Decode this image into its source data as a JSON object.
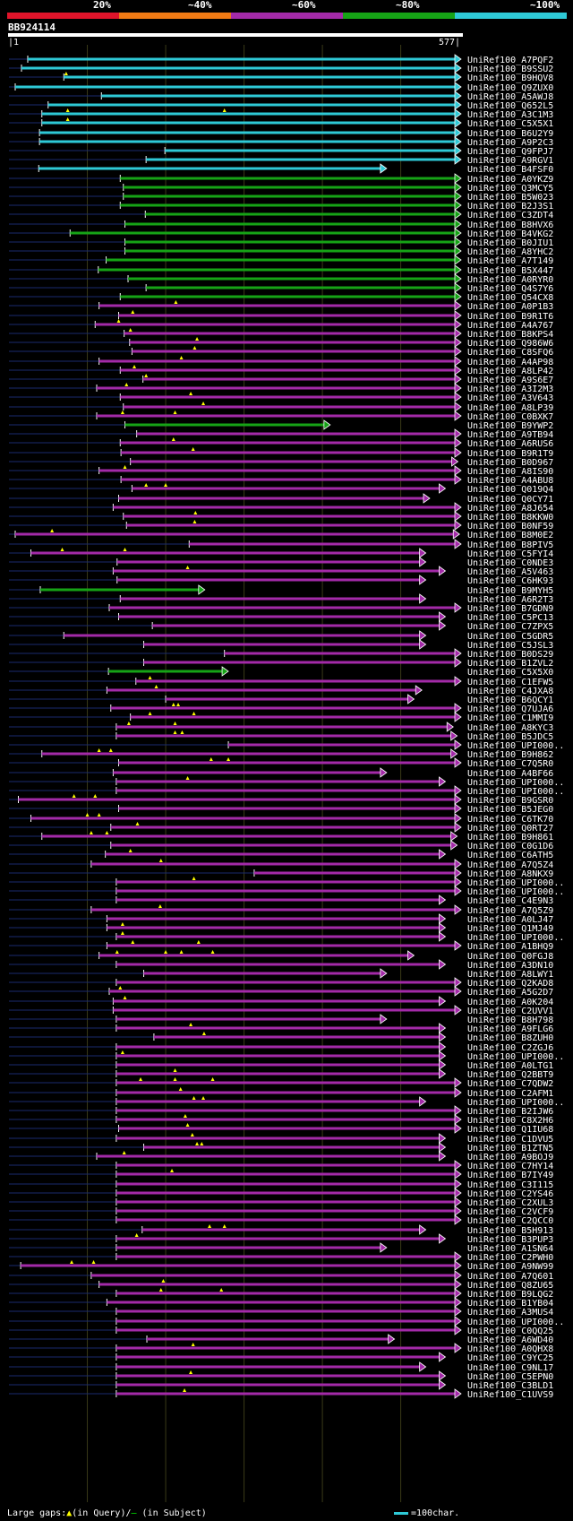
{
  "query_id": "BB924114",
  "query_start": "|1",
  "query_end": "577|",
  "scale": {
    "ticks": [
      "20%",
      "~40%",
      "~60%",
      "~80%",
      "~100%"
    ],
    "colors": [
      "#e0142a",
      "#f07a14",
      "#a32aa8",
      "#16a316",
      "#2ec9d6"
    ]
  },
  "query_length": 577,
  "footer": {
    "label": "Large gaps:",
    "q_symbol": "▲",
    "q_text": "(in Query)/",
    "s_symbol": "–",
    "s_text": " (in Subject)",
    "key_text": "=100char."
  },
  "hits": [
    {
      "id": "UniRef100_A7PQF2",
      "band": 4,
      "start": 24,
      "end": 577,
      "tri": []
    },
    {
      "id": "UniRef100_B9SSU2",
      "band": 4,
      "start": 16,
      "end": 577,
      "tri": []
    },
    {
      "id": "UniRef100_B9HQV8",
      "band": 4,
      "start": 70,
      "end": 577,
      "tri": [
        73
      ]
    },
    {
      "id": "UniRef100_Q9ZUX0",
      "band": 4,
      "start": 8,
      "end": 577,
      "tri": []
    },
    {
      "id": "UniRef100_A5AWJ8",
      "band": 4,
      "start": 118,
      "end": 577,
      "tri": []
    },
    {
      "id": "UniRef100_Q652L5",
      "band": 4,
      "start": 50,
      "end": 577,
      "tri": []
    },
    {
      "id": "UniRef100_A3C1M3",
      "band": 4,
      "start": 42,
      "end": 577,
      "tri": [
        75,
        275
      ]
    },
    {
      "id": "UniRef100_C5X5X1",
      "band": 4,
      "start": 42,
      "end": 577,
      "tri": [
        75
      ]
    },
    {
      "id": "UniRef100_B6U2Y9",
      "band": 4,
      "start": 39,
      "end": 577,
      "tri": []
    },
    {
      "id": "UniRef100_A9P2C3",
      "band": 4,
      "start": 39,
      "end": 577,
      "tri": []
    },
    {
      "id": "UniRef100_Q9FPJ7",
      "band": 4,
      "start": 199,
      "end": 577,
      "tri": []
    },
    {
      "id": "UniRef100_A9RGV1",
      "band": 4,
      "start": 175,
      "end": 577,
      "tri": []
    },
    {
      "id": "UniRef100_B4FSF0",
      "band": 4,
      "start": 38,
      "end": 482,
      "tri": []
    },
    {
      "id": "UniRef100_A0YKZ9",
      "band": 3,
      "start": 142,
      "end": 577,
      "tri": []
    },
    {
      "id": "UniRef100_Q3MCY5",
      "band": 3,
      "start": 146,
      "end": 577,
      "tri": []
    },
    {
      "id": "UniRef100_B5W023",
      "band": 3,
      "start": 146,
      "end": 577,
      "tri": []
    },
    {
      "id": "UniRef100_B2J3S1",
      "band": 3,
      "start": 142,
      "end": 577,
      "tri": []
    },
    {
      "id": "UniRef100_C3ZDT4",
      "band": 3,
      "start": 174,
      "end": 577,
      "tri": []
    },
    {
      "id": "UniRef100_B8HVX6",
      "band": 3,
      "start": 148,
      "end": 577,
      "tri": []
    },
    {
      "id": "UniRef100_B4VKG2",
      "band": 3,
      "start": 78,
      "end": 577,
      "tri": []
    },
    {
      "id": "UniRef100_B0JIU1",
      "band": 3,
      "start": 148,
      "end": 577,
      "tri": []
    },
    {
      "id": "UniRef100_A8YHC2",
      "band": 3,
      "start": 148,
      "end": 577,
      "tri": []
    },
    {
      "id": "UniRef100_A7T149",
      "band": 3,
      "start": 124,
      "end": 577,
      "tri": []
    },
    {
      "id": "UniRef100_B5X447",
      "band": 3,
      "start": 114,
      "end": 577,
      "tri": []
    },
    {
      "id": "UniRef100_A0RYR0",
      "band": 3,
      "start": 152,
      "end": 577,
      "tri": []
    },
    {
      "id": "UniRef100_Q4S7Y6",
      "band": 3,
      "start": 175,
      "end": 577,
      "tri": []
    },
    {
      "id": "UniRef100_Q54CX8",
      "band": 3,
      "start": 142,
      "end": 577,
      "tri": []
    },
    {
      "id": "UniRef100_A0P1B3",
      "band": 2,
      "start": 115,
      "end": 577,
      "tri": [
        213
      ]
    },
    {
      "id": "UniRef100_B9R1T6",
      "band": 2,
      "start": 140,
      "end": 577,
      "tri": [
        158
      ]
    },
    {
      "id": "UniRef100_A4A767",
      "band": 2,
      "start": 110,
      "end": 577,
      "tri": [
        140
      ]
    },
    {
      "id": "UniRef100_B8KPS4",
      "band": 2,
      "start": 147,
      "end": 577,
      "tri": [
        155
      ]
    },
    {
      "id": "UniRef100_Q986W6",
      "band": 2,
      "start": 154,
      "end": 577,
      "tri": [
        240
      ]
    },
    {
      "id": "UniRef100_C8SFQ6",
      "band": 2,
      "start": 157,
      "end": 577,
      "tri": [
        237
      ]
    },
    {
      "id": "UniRef100_A4AP98",
      "band": 2,
      "start": 115,
      "end": 577,
      "tri": [
        220
      ]
    },
    {
      "id": "UniRef100_A8LP42",
      "band": 2,
      "start": 142,
      "end": 577,
      "tri": [
        160
      ]
    },
    {
      "id": "UniRef100_A9S6E7",
      "band": 2,
      "start": 171,
      "end": 577,
      "tri": [
        175
      ]
    },
    {
      "id": "UniRef100_A3I2M3",
      "band": 2,
      "start": 112,
      "end": 577,
      "tri": [
        150
      ]
    },
    {
      "id": "UniRef100_A3V643",
      "band": 2,
      "start": 142,
      "end": 577,
      "tri": [
        232
      ]
    },
    {
      "id": "UniRef100_A8LP39",
      "band": 2,
      "start": 146,
      "end": 577,
      "tri": [
        248
      ]
    },
    {
      "id": "UniRef100_C0BXK7",
      "band": 2,
      "start": 112,
      "end": 577,
      "tri": [
        145,
        212
      ]
    },
    {
      "id": "UniRef100_B9YWP2",
      "band": 3,
      "start": 148,
      "end": 410,
      "tri": []
    },
    {
      "id": "UniRef100_A9TB94",
      "band": 2,
      "start": 163,
      "end": 577,
      "tri": []
    },
    {
      "id": "UniRef100_A6RUS6",
      "band": 2,
      "start": 142,
      "end": 577,
      "tri": [
        210
      ]
    },
    {
      "id": "UniRef100_B9R1T9",
      "band": 2,
      "start": 143,
      "end": 577,
      "tri": [
        235
      ]
    },
    {
      "id": "UniRef100_B0D967",
      "band": 2,
      "start": 155,
      "end": 573,
      "tri": []
    },
    {
      "id": "UniRef100_A8IS90",
      "band": 2,
      "start": 115,
      "end": 577,
      "tri": [
        148
      ]
    },
    {
      "id": "UniRef100_A4ABU8",
      "band": 2,
      "start": 143,
      "end": 577,
      "tri": []
    },
    {
      "id": "UniRef100_Q019Q4",
      "band": 2,
      "start": 157,
      "end": 557,
      "tri": [
        175,
        200
      ]
    },
    {
      "id": "UniRef100_Q0CY71",
      "band": 2,
      "start": 140,
      "end": 537,
      "tri": []
    },
    {
      "id": "UniRef100_A8J654",
      "band": 2,
      "start": 133,
      "end": 577,
      "tri": []
    },
    {
      "id": "UniRef100_B8KKW0",
      "band": 2,
      "start": 146,
      "end": 577,
      "tri": [
        238
      ]
    },
    {
      "id": "UniRef100_B0NF59",
      "band": 2,
      "start": 150,
      "end": 577,
      "tri": [
        237
      ]
    },
    {
      "id": "UniRef100_B8M0E2",
      "band": 2,
      "start": 8,
      "end": 575,
      "tri": [
        55
      ]
    },
    {
      "id": "UniRef100_B8PIV5",
      "band": 2,
      "start": 230,
      "end": 577,
      "tri": []
    },
    {
      "id": "UniRef100_C5FYI4",
      "band": 2,
      "start": 28,
      "end": 532,
      "tri": [
        68,
        148
      ]
    },
    {
      "id": "UniRef100_C0NDE3",
      "band": 2,
      "start": 138,
      "end": 532,
      "tri": []
    },
    {
      "id": "UniRef100_A5V463",
      "band": 2,
      "start": 133,
      "end": 557,
      "tri": [
        228
      ]
    },
    {
      "id": "UniRef100_C6HK93",
      "band": 2,
      "start": 138,
      "end": 532,
      "tri": []
    },
    {
      "id": "UniRef100_B9MYH5",
      "band": 3,
      "start": 40,
      "end": 250,
      "tri": []
    },
    {
      "id": "UniRef100_A6R2T3",
      "band": 2,
      "start": 142,
      "end": 532,
      "tri": []
    },
    {
      "id": "UniRef100_B7GDN9",
      "band": 2,
      "start": 128,
      "end": 577,
      "tri": []
    },
    {
      "id": "UniRef100_C5PC13",
      "band": 2,
      "start": 140,
      "end": 557,
      "tri": []
    },
    {
      "id": "UniRef100_C7ZPX5",
      "band": 2,
      "start": 183,
      "end": 557,
      "tri": []
    },
    {
      "id": "UniRef100_C5GDR5",
      "band": 2,
      "start": 70,
      "end": 532,
      "tri": []
    },
    {
      "id": "UniRef100_C5JSL3",
      "band": 2,
      "start": 172,
      "end": 532,
      "tri": []
    },
    {
      "id": "UniRef100_B0DS29",
      "band": 2,
      "start": 275,
      "end": 577,
      "tri": []
    },
    {
      "id": "UniRef100_B1ZVL2",
      "band": 2,
      "start": 172,
      "end": 577,
      "tri": []
    },
    {
      "id": "UniRef100_C5X5X0",
      "band": 3,
      "start": 127,
      "end": 280,
      "tri": []
    },
    {
      "id": "UniRef100_C1EFW5",
      "band": 2,
      "start": 162,
      "end": 577,
      "tri": [
        180
      ]
    },
    {
      "id": "UniRef100_C4JXA8",
      "band": 2,
      "start": 125,
      "end": 527,
      "tri": [
        188
      ]
    },
    {
      "id": "UniRef100_B6QCY1",
      "band": 2,
      "start": 200,
      "end": 517,
      "tri": []
    },
    {
      "id": "UniRef100_Q7UJA6",
      "band": 2,
      "start": 130,
      "end": 577,
      "tri": [
        210,
        216
      ]
    },
    {
      "id": "UniRef100_C1MMI9",
      "band": 2,
      "start": 155,
      "end": 577,
      "tri": [
        180,
        236
      ]
    },
    {
      "id": "UniRef100_A8KYC3",
      "band": 2,
      "start": 137,
      "end": 567,
      "tri": [
        153,
        212
      ]
    },
    {
      "id": "UniRef100_B5JDC5",
      "band": 2,
      "start": 137,
      "end": 572,
      "tri": [
        212,
        221
      ]
    },
    {
      "id": "UniRef100_UPI000..",
      "band": 2,
      "start": 280,
      "end": 577,
      "tri": []
    },
    {
      "id": "UniRef100_B9H862",
      "band": 2,
      "start": 42,
      "end": 572,
      "tri": [
        115,
        130
      ]
    },
    {
      "id": "UniRef100_C7Q5R0",
      "band": 2,
      "start": 140,
      "end": 577,
      "tri": [
        258,
        280
      ]
    },
    {
      "id": "UniRef100_A4BF66",
      "band": 2,
      "start": 133,
      "end": 482,
      "tri": []
    },
    {
      "id": "UniRef100_UPI000..",
      "band": 2,
      "start": 137,
      "end": 557,
      "tri": [
        228
      ]
    },
    {
      "id": "UniRef100_UPI000..",
      "band": 2,
      "start": 137,
      "end": 577,
      "tri": []
    },
    {
      "id": "UniRef100_B9GSR0",
      "band": 2,
      "start": 12,
      "end": 577,
      "tri": [
        83,
        110
      ]
    },
    {
      "id": "UniRef100_B5JEG0",
      "band": 2,
      "start": 140,
      "end": 577,
      "tri": []
    },
    {
      "id": "UniRef100_C6TK70",
      "band": 2,
      "start": 28,
      "end": 577,
      "tri": [
        100,
        115
      ]
    },
    {
      "id": "UniRef100_Q0RT27",
      "band": 2,
      "start": 130,
      "end": 577,
      "tri": [
        164
      ]
    },
    {
      "id": "UniRef100_B9H861",
      "band": 2,
      "start": 42,
      "end": 572,
      "tri": [
        105,
        125
      ]
    },
    {
      "id": "UniRef100_C0G1D6",
      "band": 2,
      "start": 130,
      "end": 572,
      "tri": []
    },
    {
      "id": "UniRef100_C6ATH5",
      "band": 2,
      "start": 123,
      "end": 557,
      "tri": [
        155
      ]
    },
    {
      "id": "UniRef100_A7Q5Z4",
      "band": 2,
      "start": 105,
      "end": 577,
      "tri": [
        194
      ]
    },
    {
      "id": "UniRef100_A8NKX9",
      "band": 2,
      "start": 313,
      "end": 577,
      "tri": []
    },
    {
      "id": "UniRef100_UPI000..",
      "band": 2,
      "start": 137,
      "end": 577,
      "tri": [
        236
      ]
    },
    {
      "id": "UniRef100_UPI000..",
      "band": 2,
      "start": 137,
      "end": 577,
      "tri": []
    },
    {
      "id": "UniRef100_C4E9N3",
      "band": 2,
      "start": 137,
      "end": 557,
      "tri": []
    },
    {
      "id": "UniRef100_A7Q5Z9",
      "band": 2,
      "start": 105,
      "end": 577,
      "tri": [
        193
      ]
    },
    {
      "id": "UniRef100_A0LJ47",
      "band": 2,
      "start": 125,
      "end": 557,
      "tri": []
    },
    {
      "id": "UniRef100_Q1MJ49",
      "band": 2,
      "start": 125,
      "end": 557,
      "tri": [
        145
      ]
    },
    {
      "id": "UniRef100_UPI000..",
      "band": 2,
      "start": 137,
      "end": 557,
      "tri": [
        145
      ]
    },
    {
      "id": "UniRef100_A1BHQ9",
      "band": 2,
      "start": 125,
      "end": 577,
      "tri": [
        158,
        242
      ]
    },
    {
      "id": "UniRef100_Q0FGJ8",
      "band": 2,
      "start": 115,
      "end": 517,
      "tri": [
        138,
        200,
        220,
        260
      ]
    },
    {
      "id": "UniRef100_A3DN10",
      "band": 2,
      "start": 137,
      "end": 557,
      "tri": []
    },
    {
      "id": "UniRef100_A8LWY1",
      "band": 2,
      "start": 172,
      "end": 482,
      "tri": []
    },
    {
      "id": "UniRef100_Q2KAD8",
      "band": 2,
      "start": 137,
      "end": 577,
      "tri": []
    },
    {
      "id": "UniRef100_A5G2D7",
      "band": 2,
      "start": 128,
      "end": 577,
      "tri": [
        142
      ]
    },
    {
      "id": "UniRef100_A0K204",
      "band": 2,
      "start": 133,
      "end": 557,
      "tri": [
        148
      ]
    },
    {
      "id": "UniRef100_C2UVV1",
      "band": 2,
      "start": 133,
      "end": 577,
      "tri": []
    },
    {
      "id": "UniRef100_B8H798",
      "band": 2,
      "start": 137,
      "end": 482,
      "tri": []
    },
    {
      "id": "UniRef100_A9FLG6",
      "band": 2,
      "start": 137,
      "end": 557,
      "tri": [
        232
      ]
    },
    {
      "id": "UniRef100_B8ZUH0",
      "band": 2,
      "start": 185,
      "end": 557,
      "tri": [
        249
      ]
    },
    {
      "id": "UniRef100_C2ZGJ6",
      "band": 2,
      "start": 137,
      "end": 557,
      "tri": []
    },
    {
      "id": "UniRef100_UPI000..",
      "band": 2,
      "start": 137,
      "end": 557,
      "tri": [
        145
      ]
    },
    {
      "id": "UniRef100_A0LTG1",
      "band": 2,
      "start": 137,
      "end": 557,
      "tri": []
    },
    {
      "id": "UniRef100_Q2BBT9",
      "band": 2,
      "start": 137,
      "end": 557,
      "tri": [
        212
      ]
    },
    {
      "id": "UniRef100_C7QDW2",
      "band": 2,
      "start": 137,
      "end": 577,
      "tri": [
        168,
        212,
        260
      ]
    },
    {
      "id": "UniRef100_C2AFM1",
      "band": 2,
      "start": 137,
      "end": 577,
      "tri": [
        219
      ]
    },
    {
      "id": "UniRef100_UPI000..",
      "band": 2,
      "start": 137,
      "end": 532,
      "tri": [
        236,
        248
      ]
    },
    {
      "id": "UniRef100_B2IJW6",
      "band": 2,
      "start": 137,
      "end": 577,
      "tri": []
    },
    {
      "id": "UniRef100_C8X2H6",
      "band": 2,
      "start": 137,
      "end": 577,
      "tri": [
        225
      ]
    },
    {
      "id": "UniRef100_Q1IU68",
      "band": 2,
      "start": 140,
      "end": 577,
      "tri": [
        228
      ]
    },
    {
      "id": "UniRef100_C1DVU5",
      "band": 2,
      "start": 137,
      "end": 557,
      "tri": [
        234
      ]
    },
    {
      "id": "UniRef100_B1ZTN5",
      "band": 2,
      "start": 172,
      "end": 557,
      "tri": [
        240,
        246
      ]
    },
    {
      "id": "UniRef100_A9BOJ9",
      "band": 2,
      "start": 112,
      "end": 557,
      "tri": [
        147
      ]
    },
    {
      "id": "UniRef100_C7HY14",
      "band": 2,
      "start": 137,
      "end": 577,
      "tri": []
    },
    {
      "id": "UniRef100_B7IY49",
      "band": 2,
      "start": 137,
      "end": 577,
      "tri": [
        208
      ]
    },
    {
      "id": "UniRef100_C3I115",
      "band": 2,
      "start": 137,
      "end": 577,
      "tri": []
    },
    {
      "id": "UniRef100_C2YS46",
      "band": 2,
      "start": 137,
      "end": 577,
      "tri": []
    },
    {
      "id": "UniRef100_C2XUL3",
      "band": 2,
      "start": 137,
      "end": 577,
      "tri": []
    },
    {
      "id": "UniRef100_C2VCF9",
      "band": 2,
      "start": 137,
      "end": 577,
      "tri": []
    },
    {
      "id": "UniRef100_C2QCC0",
      "band": 2,
      "start": 137,
      "end": 577,
      "tri": []
    },
    {
      "id": "UniRef100_B5H913",
      "band": 2,
      "start": 170,
      "end": 532,
      "tri": [
        256,
        275
      ]
    },
    {
      "id": "UniRef100_B3PUP3",
      "band": 2,
      "start": 137,
      "end": 557,
      "tri": [
        163
      ]
    },
    {
      "id": "UniRef100_A1SN64",
      "band": 2,
      "start": 137,
      "end": 482,
      "tri": []
    },
    {
      "id": "UniRef100_C2PWH0",
      "band": 2,
      "start": 137,
      "end": 577,
      "tri": []
    },
    {
      "id": "UniRef100_A9NW99",
      "band": 2,
      "start": 15,
      "end": 577,
      "tri": [
        80,
        108
      ]
    },
    {
      "id": "UniRef100_A7Q601",
      "band": 2,
      "start": 105,
      "end": 577,
      "tri": []
    },
    {
      "id": "UniRef100_Q8ZU65",
      "band": 2,
      "start": 115,
      "end": 577,
      "tri": [
        197
      ]
    },
    {
      "id": "UniRef100_B9LQG2",
      "band": 2,
      "start": 137,
      "end": 577,
      "tri": [
        194,
        271
      ]
    },
    {
      "id": "UniRef100_B1YB04",
      "band": 2,
      "start": 125,
      "end": 577,
      "tri": []
    },
    {
      "id": "UniRef100_A3MUS4",
      "band": 2,
      "start": 137,
      "end": 577,
      "tri": []
    },
    {
      "id": "UniRef100_UPI000..",
      "band": 2,
      "start": 137,
      "end": 577,
      "tri": []
    },
    {
      "id": "UniRef100_C0QQ25",
      "band": 2,
      "start": 137,
      "end": 577,
      "tri": []
    },
    {
      "id": "UniRef100_A6WD40",
      "band": 2,
      "start": 176,
      "end": 492,
      "tri": []
    },
    {
      "id": "UniRef100_A0QHX8",
      "band": 2,
      "start": 137,
      "end": 577,
      "tri": [
        235
      ]
    },
    {
      "id": "UniRef100_C9YC25",
      "band": 2,
      "start": 137,
      "end": 557,
      "tri": []
    },
    {
      "id": "UniRef100_C9NL17",
      "band": 2,
      "start": 137,
      "end": 532,
      "tri": []
    },
    {
      "id": "UniRef100_C5EPN0",
      "band": 2,
      "start": 137,
      "end": 557,
      "tri": [
        232
      ]
    },
    {
      "id": "UniRef100_C3BLD1",
      "band": 2,
      "start": 137,
      "end": 557,
      "tri": []
    },
    {
      "id": "UniRef100_C1UVS9",
      "band": 2,
      "start": 137,
      "end": 577,
      "tri": [
        224
      ]
    }
  ]
}
